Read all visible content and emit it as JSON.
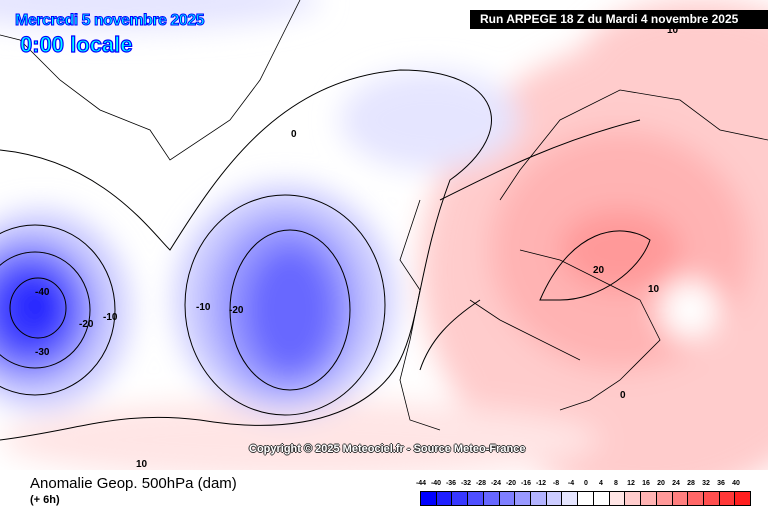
{
  "header": {
    "date": "Mercredi 5 novembre 2025",
    "time": "0:00 locale",
    "run": "Run ARPEGE 18 Z du Mardi 4 novembre 2025"
  },
  "copyright": "Copyright © 2025 Meteociel.fr - Source Meteo-France",
  "footer": {
    "title": "Anomalie Geop. 500hPa (dam)",
    "lead": "(+ 6h)"
  },
  "contour_labels": [
    "0",
    "-10",
    "-20",
    "-10",
    "-20",
    "-30",
    "-40",
    "10",
    "20",
    "10",
    "0",
    "10"
  ],
  "legend": {
    "labels": [
      "-44",
      "-40",
      "-36",
      "-32",
      "-28",
      "-24",
      "-20",
      "-16",
      "-12",
      "-8",
      "-4",
      "0",
      "4",
      "8",
      "12",
      "16",
      "20",
      "24",
      "28",
      "32",
      "36",
      "40"
    ],
    "colors": [
      "#0000ff",
      "#1f1fff",
      "#3838ff",
      "#4f4fff",
      "#6767ff",
      "#7f7fff",
      "#9999ff",
      "#b3b3ff",
      "#ccccff",
      "#e5e5ff",
      "#ffffff",
      "#ffffff",
      "#ffe5e5",
      "#ffcccc",
      "#ffb3b3",
      "#ff9999",
      "#ff7f7f",
      "#ff6767",
      "#ff4f4f",
      "#ff3838",
      "#ff1f1f"
    ]
  }
}
